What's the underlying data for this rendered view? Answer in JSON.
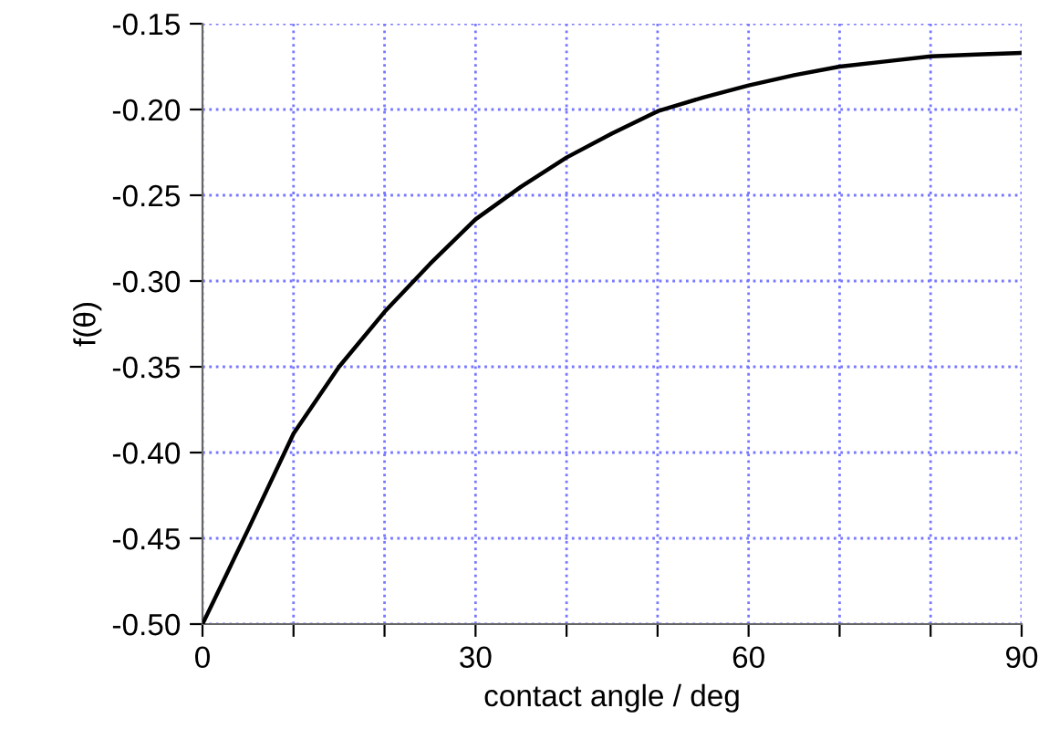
{
  "chart_data": {
    "type": "line",
    "xlabel": "contact angle / deg",
    "ylabel": "f(θ)",
    "x": [
      0,
      5,
      10,
      15,
      20,
      25,
      30,
      35,
      40,
      45,
      50,
      55,
      60,
      65,
      70,
      75,
      80,
      85,
      90
    ],
    "series": [
      {
        "color": "#000000",
        "values": [
          -0.5,
          -0.445,
          -0.389,
          -0.35,
          -0.318,
          -0.29,
          -0.264,
          -0.245,
          -0.228,
          -0.214,
          -0.201,
          -0.193,
          -0.186,
          -0.18,
          -0.175,
          -0.172,
          -0.169,
          -0.168,
          -0.167
        ]
      }
    ],
    "xlim": [
      0,
      90
    ],
    "xticks": [
      0,
      {
        "value": 10,
        "label": null
      },
      {
        "value": 20,
        "label": null
      },
      30,
      {
        "value": 40,
        "label": null
      },
      {
        "value": 50,
        "label": null
      },
      60,
      {
        "value": 70,
        "label": null
      },
      {
        "value": 80,
        "label": null
      },
      90
    ],
    "ylim": [
      -0.5,
      -0.15
    ],
    "yticks": [
      {
        "value": -0.5,
        "label": "-0.50"
      },
      {
        "value": -0.45,
        "label": "-0.45"
      },
      {
        "value": -0.4,
        "label": "-0.40"
      },
      {
        "value": -0.35,
        "label": "-0.35"
      },
      {
        "value": -0.3,
        "label": "-0.30"
      },
      {
        "value": -0.25,
        "label": "-0.25"
      },
      {
        "value": -0.2,
        "label": "-0.20"
      },
      {
        "value": -0.15,
        "label": "-0.15"
      }
    ],
    "grid": true,
    "marker": "none",
    "line_style": "solid"
  }
}
